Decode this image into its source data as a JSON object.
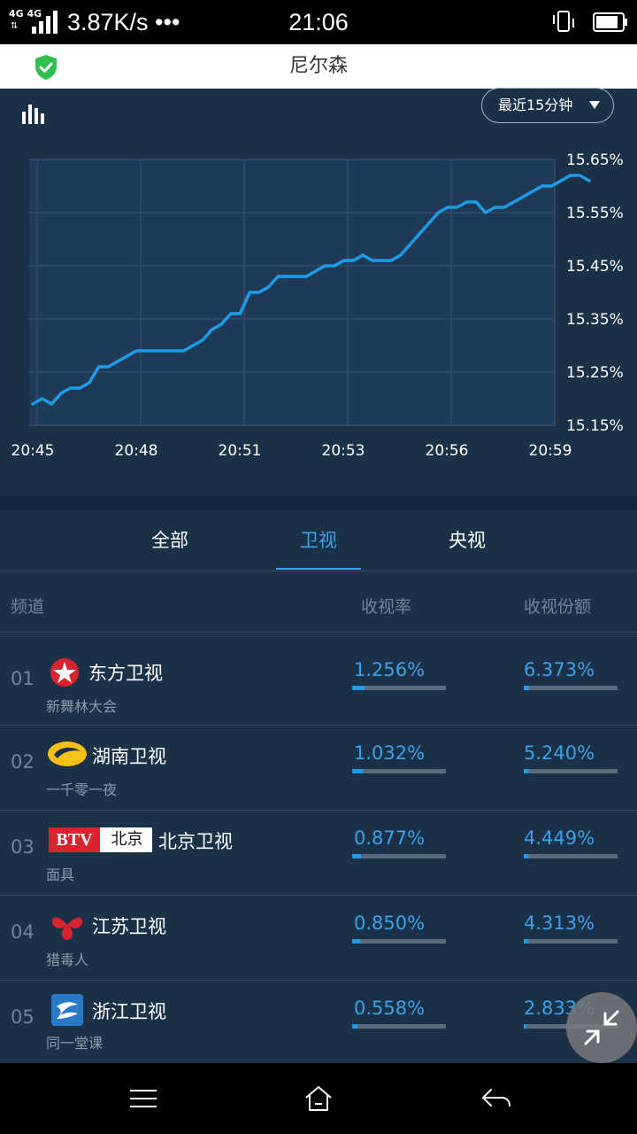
{
  "status_bar": {
    "network": "4G 4G",
    "speed": "3.87K/s •••",
    "time": "21:06"
  },
  "header": {
    "title": "尼尔森",
    "shield_icon": "shield-check-icon",
    "shield_color": "#2fbf4e"
  },
  "chart_controls": {
    "range_label": "最近15分钟"
  },
  "chart_data": {
    "type": "line",
    "x_ticks": [
      "20:45",
      "20:48",
      "20:51",
      "20:53",
      "20:56",
      "20:59"
    ],
    "y_ticks": [
      "15.65%",
      "15.55%",
      "15.45%",
      "15.35%",
      "15.25%",
      "15.15%"
    ],
    "ylim": [
      15.15,
      15.65
    ],
    "grid": true,
    "line_color": "#1e9be6",
    "series": [
      {
        "values": [
          15.19,
          15.2,
          15.19,
          15.21,
          15.22,
          15.22,
          15.23,
          15.26,
          15.26,
          15.27,
          15.28,
          15.29,
          15.29,
          15.29,
          15.29,
          15.29,
          15.29,
          15.3,
          15.31,
          15.33,
          15.34,
          15.36,
          15.36,
          15.4,
          15.4,
          15.41,
          15.43,
          15.43,
          15.43,
          15.43,
          15.44,
          15.45,
          15.45,
          15.46,
          15.46,
          15.47,
          15.46,
          15.46,
          15.46,
          15.47,
          15.49,
          15.51,
          15.53,
          15.55,
          15.56,
          15.56,
          15.57,
          15.57,
          15.55,
          15.56,
          15.56,
          15.57,
          15.58,
          15.59,
          15.6,
          15.6,
          15.61,
          15.62,
          15.62,
          15.61
        ]
      }
    ]
  },
  "tabs": [
    {
      "label": "全部",
      "active": false
    },
    {
      "label": "卫视",
      "active": true
    },
    {
      "label": "央视",
      "active": false
    }
  ],
  "table": {
    "headers": {
      "channel": "频道",
      "rating": "收视率",
      "share": "收视份额"
    },
    "rows": [
      {
        "rank": "01",
        "channel": "东方卫视",
        "program": "新舞林大会",
        "rating": "1.256%",
        "rating_frac": 0.13,
        "share": "6.373%",
        "share_frac": 0.06,
        "logo": "dragon-tv-logo-icon"
      },
      {
        "rank": "02",
        "channel": "湖南卫视",
        "program": "一千零一夜",
        "rating": "1.032%",
        "rating_frac": 0.11,
        "share": "5.240%",
        "share_frac": 0.05,
        "logo": "hunan-tv-logo-icon"
      },
      {
        "rank": "03",
        "channel": "北京卫视",
        "program": "面具",
        "rating": "0.877%",
        "rating_frac": 0.09,
        "share": "4.449%",
        "share_frac": 0.045,
        "logo": "btv-logo-icon",
        "logo_text_btv": "BTV",
        "logo_text_cn": "北京"
      },
      {
        "rank": "04",
        "channel": "江苏卫视",
        "program": "猎毒人",
        "rating": "0.850%",
        "rating_frac": 0.085,
        "share": "4.313%",
        "share_frac": 0.043,
        "logo": "jiangsu-tv-logo-icon"
      },
      {
        "rank": "05",
        "channel": "浙江卫视",
        "program": "同一堂课",
        "rating": "0.558%",
        "rating_frac": 0.06,
        "share": "2.833%",
        "share_frac": 0.03,
        "logo": "zhejiang-tv-logo-icon"
      }
    ]
  },
  "nav": {
    "menu_icon": "menu-icon",
    "home_icon": "home-icon",
    "back_icon": "back-icon"
  },
  "fab_icon": "collapse-arrows-icon"
}
